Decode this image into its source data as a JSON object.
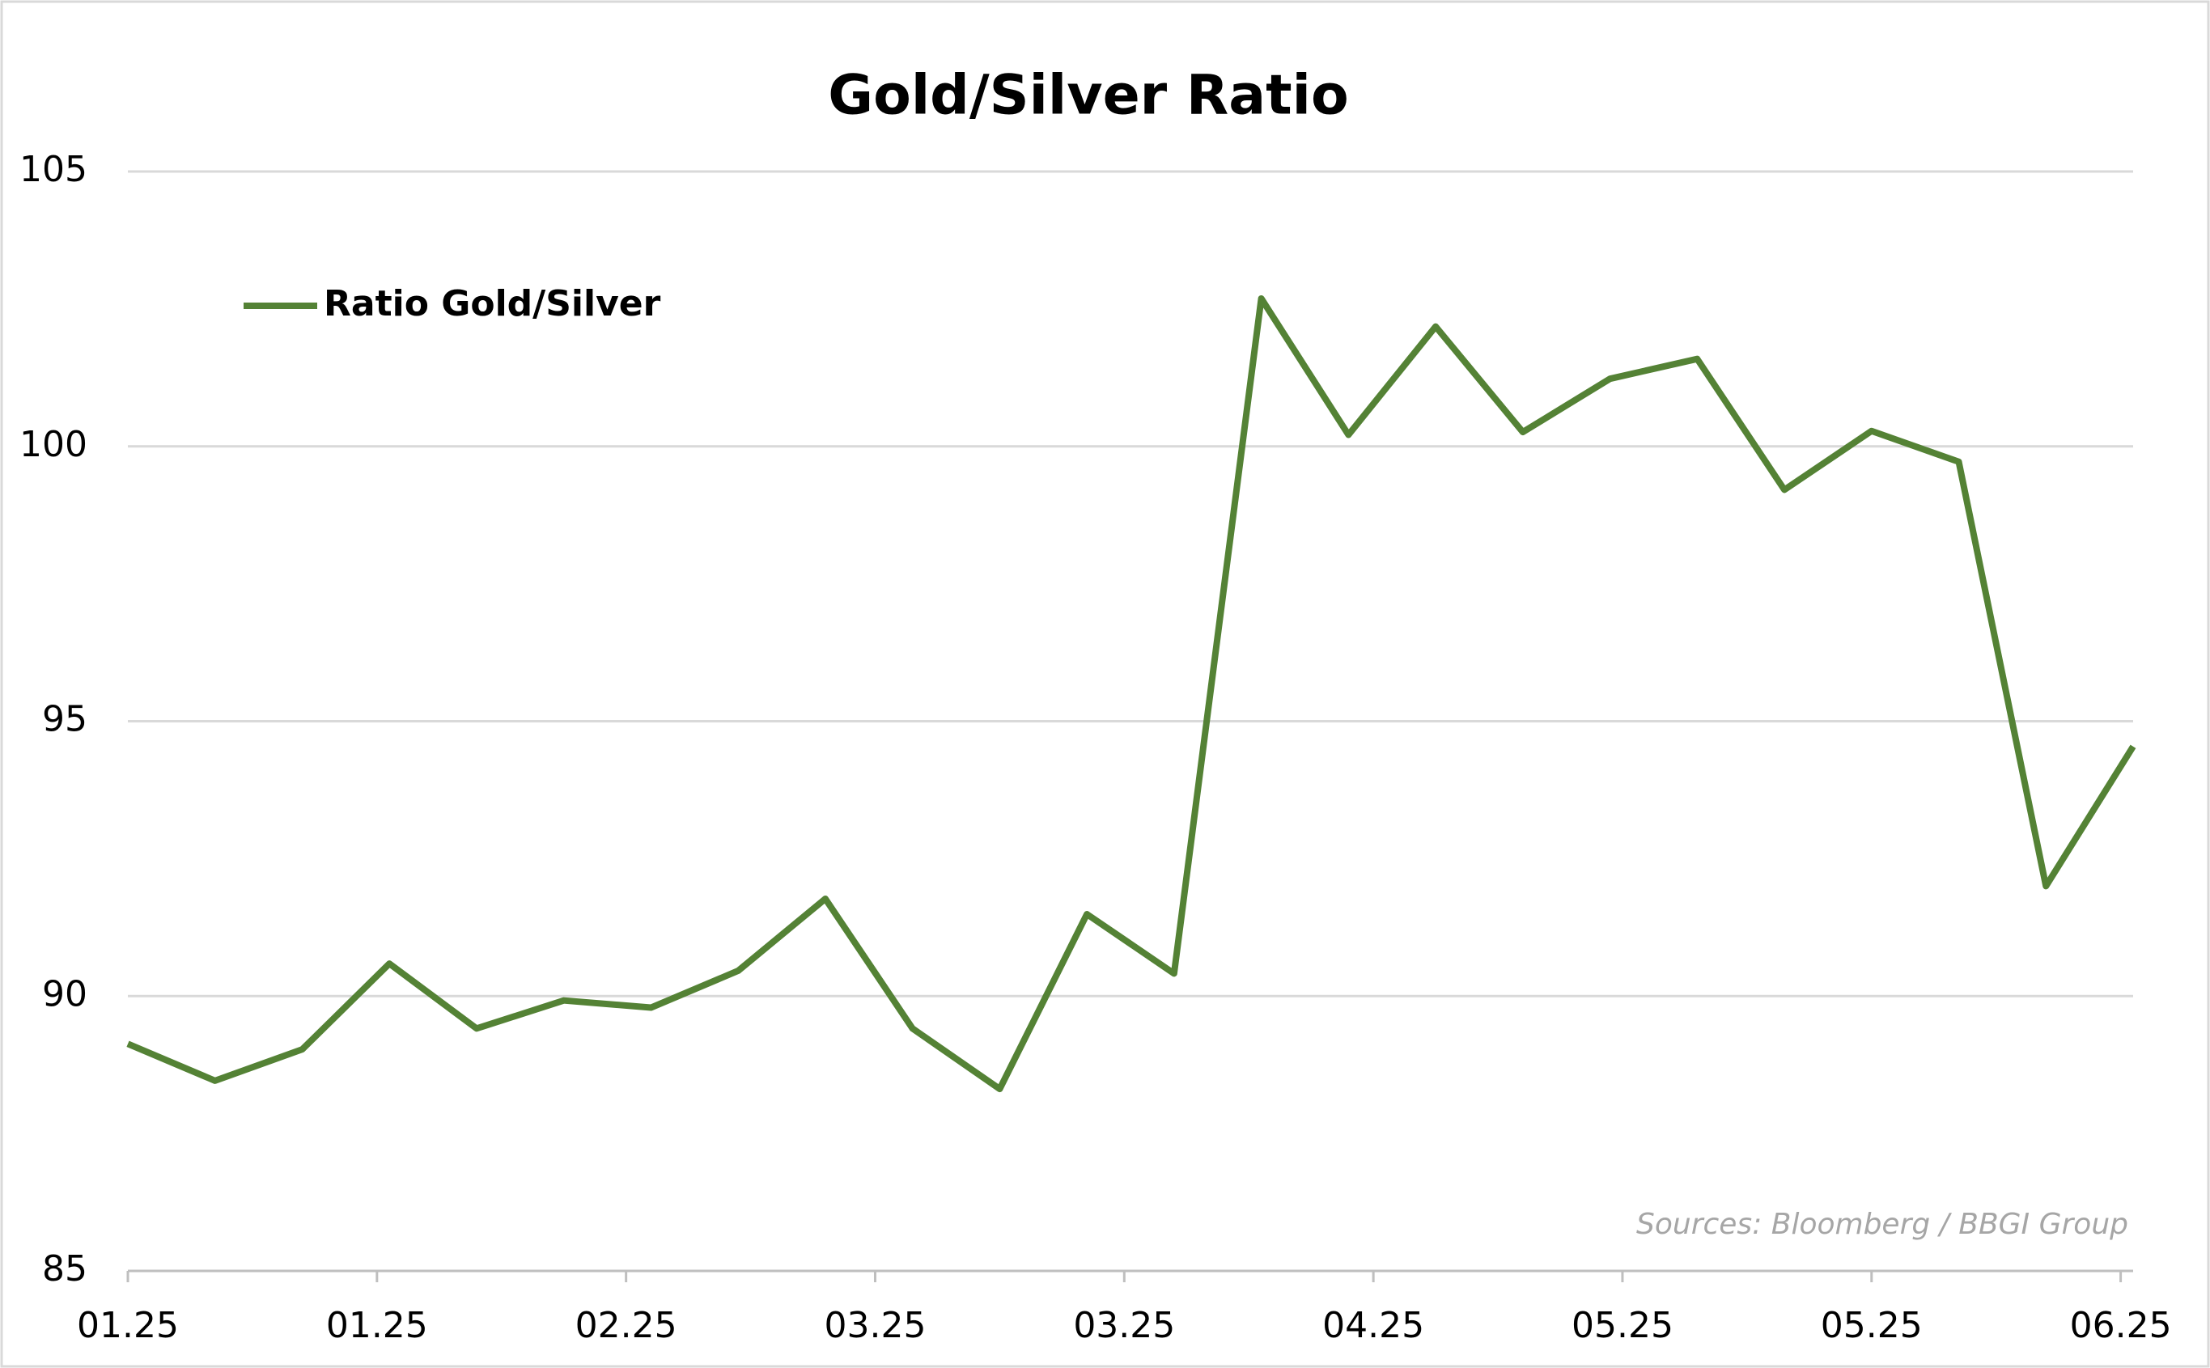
{
  "chart_data": {
    "type": "line",
    "title": "Gold/Silver Ratio",
    "x": [
      0,
      7,
      14,
      21,
      28,
      35,
      42,
      49,
      56,
      63,
      70,
      77,
      84,
      91,
      98,
      105,
      112,
      119,
      126,
      133,
      140,
      147,
      154,
      161
    ],
    "series": [
      {
        "name": "Ratio Gold/Silver",
        "color": "#548235",
        "values": [
          89.13,
          88.46,
          89.03,
          90.59,
          89.41,
          89.92,
          89.79,
          90.46,
          91.77,
          89.41,
          88.31,
          91.49,
          90.41,
          102.69,
          100.21,
          102.18,
          100.26,
          101.23,
          101.59,
          99.21,
          100.28,
          99.72,
          92.0,
          94.54
        ]
      }
    ],
    "xlim": [
      0,
      161
    ],
    "xticks": [
      {
        "value": 0,
        "label": "01.25"
      },
      {
        "value": 20,
        "label": "01.25"
      },
      {
        "value": 40,
        "label": "02.25"
      },
      {
        "value": 60,
        "label": "03.25"
      },
      {
        "value": 80,
        "label": "03.25"
      },
      {
        "value": 100,
        "label": "04.25"
      },
      {
        "value": 120,
        "label": "05.25"
      },
      {
        "value": 140,
        "label": "05.25"
      },
      {
        "value": 160,
        "label": "06.25"
      }
    ],
    "ylim": [
      85,
      105
    ],
    "yticks": [
      85,
      90,
      95,
      100,
      105
    ],
    "grid": true,
    "legend": "upper left",
    "source": "Sources: Bloomberg / BBGI Group"
  }
}
